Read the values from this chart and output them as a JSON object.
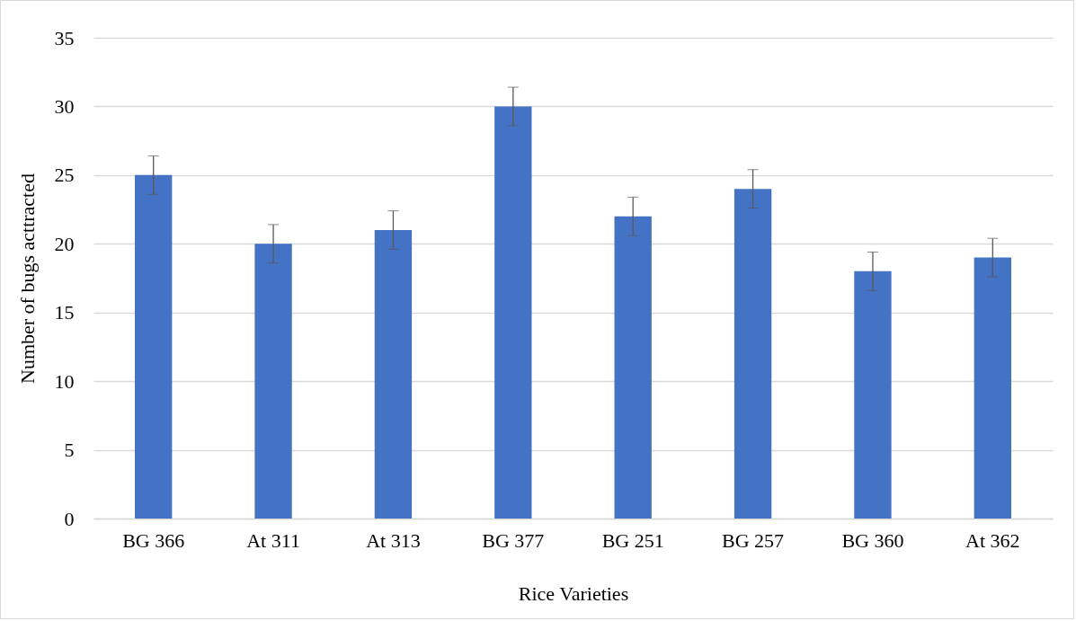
{
  "chart_data": {
    "type": "bar",
    "xlabel": "Rice Varieties",
    "ylabel": "Number of bugs acttracted",
    "categories": [
      "BG 366",
      "At 311",
      "At 313",
      "BG 377",
      "BG 251",
      "BG 257",
      "BG 360",
      "At 362"
    ],
    "values": [
      25,
      20,
      21,
      30,
      22,
      24,
      18,
      19
    ],
    "errors": [
      1.4,
      1.4,
      1.4,
      1.4,
      1.4,
      1.4,
      1.4,
      1.4
    ],
    "color": "#4472c4",
    "ylim": [
      0,
      35
    ],
    "yticks": [
      0,
      5,
      10,
      15,
      20,
      25,
      30,
      35
    ],
    "grid": "y"
  }
}
